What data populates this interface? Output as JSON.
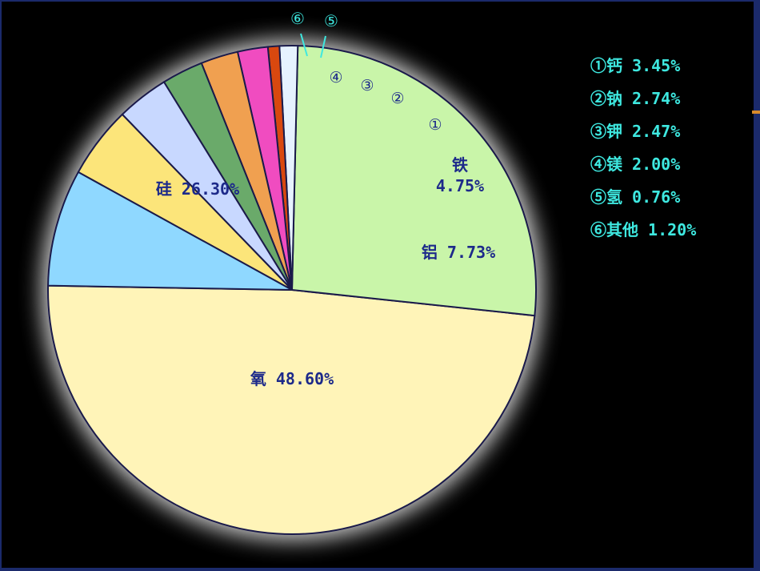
{
  "chart_data": {
    "type": "pie",
    "slices": [
      {
        "key": "oxygen",
        "label": "氧 48.60%",
        "value": 48.6,
        "color": "#fff4b8"
      },
      {
        "key": "silicon",
        "label": "硅 26.30%",
        "value": 26.3,
        "color": "#c9f5a9"
      },
      {
        "key": "other",
        "label": "⑥",
        "value": 1.2,
        "color": "#e6f2ff"
      },
      {
        "key": "hydrogen",
        "label": "⑤",
        "value": 0.76,
        "color": "#d9480f"
      },
      {
        "key": "magnesium",
        "label": "④",
        "value": 2.0,
        "color": "#f04cc0"
      },
      {
        "key": "potassium",
        "label": "③",
        "value": 2.47,
        "color": "#f0a050"
      },
      {
        "key": "sodium",
        "label": "②",
        "value": 2.74,
        "color": "#6aaa6a"
      },
      {
        "key": "calcium",
        "label": "①",
        "value": 3.45,
        "color": "#c8d8ff"
      },
      {
        "key": "iron",
        "label": "铁\n4.75%",
        "value": 4.75,
        "color": "#fce57a"
      },
      {
        "key": "aluminum",
        "label": "铝 7.73%",
        "value": 7.73,
        "color": "#8fd8ff"
      }
    ],
    "legend": [
      "①钙 3.45%",
      "②钠 2.74%",
      "③钾 2.47%",
      "④镁 2.00%",
      "⑤氢 0.76%",
      "⑥其他 1.20%"
    ],
    "legend_placement": "right",
    "colors": {
      "background": "#000000",
      "slice_outline": "#1a1a4a",
      "label_text": "#1d2a8a",
      "legend_text": "#3ee8e0",
      "glow": "#ffffff"
    }
  }
}
